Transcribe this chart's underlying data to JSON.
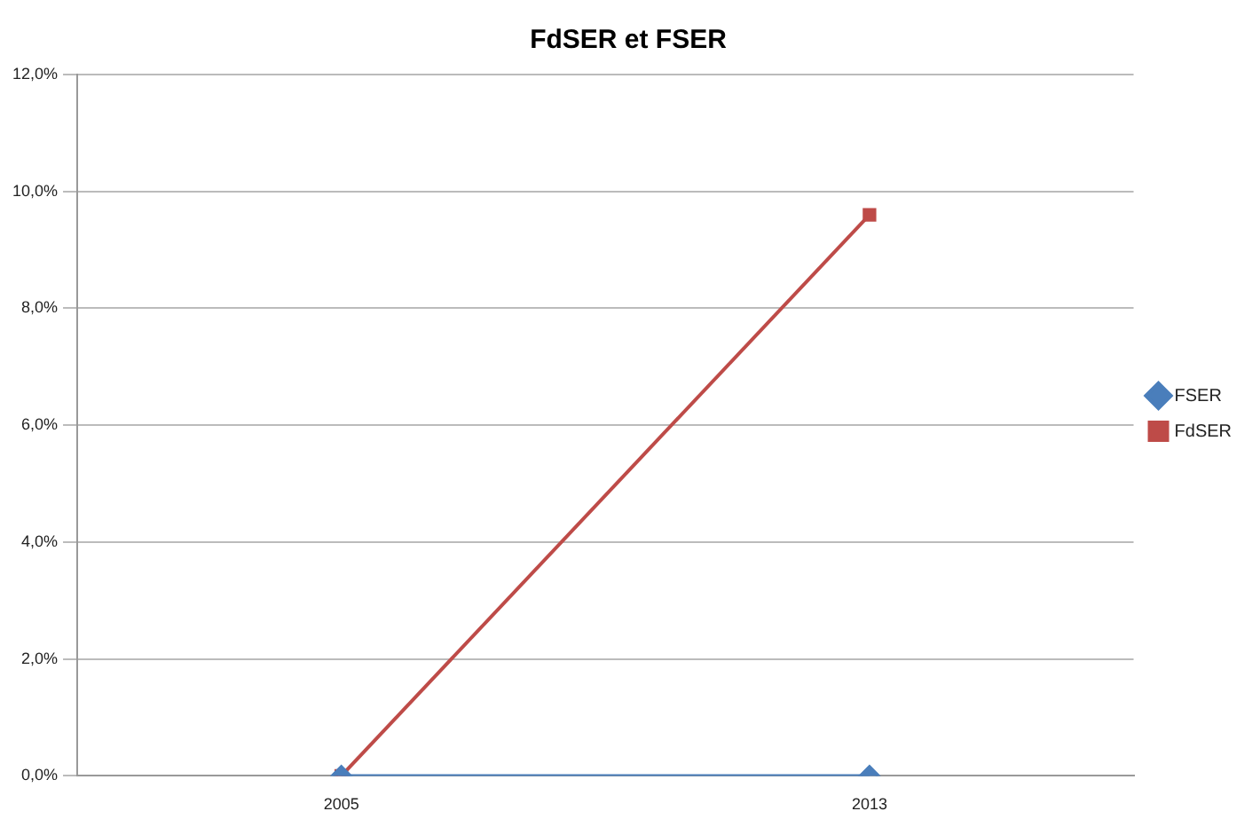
{
  "chart_data": {
    "type": "line",
    "title": "FdSER et FSER",
    "categories": [
      "2005",
      "2013"
    ],
    "series": [
      {
        "name": "FSER",
        "color": "#4a7ebb",
        "values": [
          0,
          0
        ],
        "marker": "diamond"
      },
      {
        "name": "FdSER",
        "color": "#be4b48",
        "values": [
          0,
          9.6
        ],
        "marker": "square"
      }
    ],
    "ylim": [
      0,
      12
    ],
    "yticks": [
      {
        "value": 0,
        "label": "0,0%"
      },
      {
        "value": 2,
        "label": "2,0%"
      },
      {
        "value": 4,
        "label": "4,0%"
      },
      {
        "value": 6,
        "label": "6,0%"
      },
      {
        "value": 8,
        "label": "8,0%"
      },
      {
        "value": 10,
        "label": "10,0%"
      },
      {
        "value": 12,
        "label": "12,0%"
      }
    ],
    "grid": "y",
    "legend": "right"
  }
}
